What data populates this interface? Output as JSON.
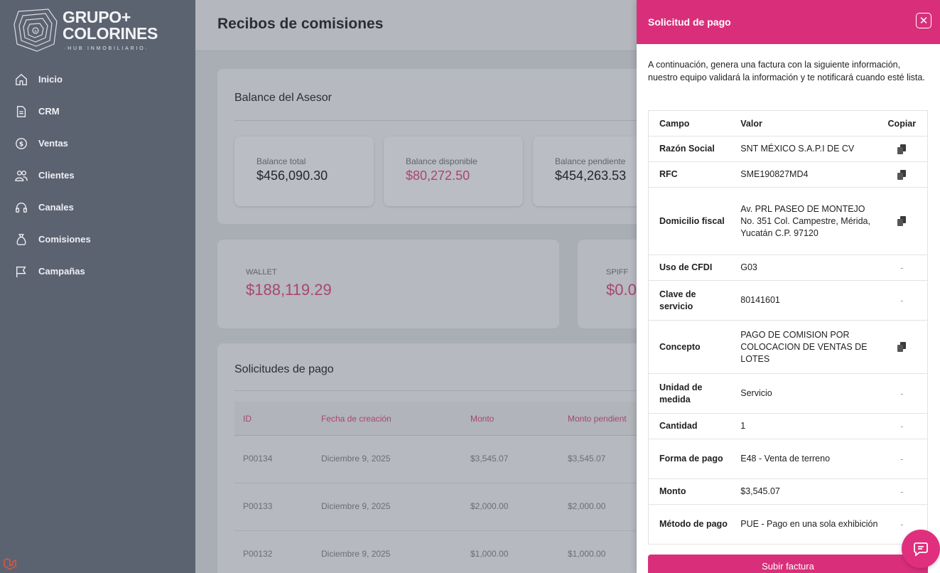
{
  "brand": {
    "line1": "GRUPO+",
    "line2": "COLORINES",
    "tagline": "·HUB INMOBILIARIO·"
  },
  "sidebar": {
    "items": [
      {
        "label": "Inicio",
        "icon": "home-icon"
      },
      {
        "label": "CRM",
        "icon": "document-icon"
      },
      {
        "label": "Ventas",
        "icon": "dollar-circle-icon"
      },
      {
        "label": "Clientes",
        "icon": "users-icon"
      },
      {
        "label": "Canales",
        "icon": "headset-icon"
      },
      {
        "label": "Comisiones",
        "icon": "money-bag-icon"
      },
      {
        "label": "Campañas",
        "icon": "flag-icon"
      }
    ]
  },
  "page": {
    "title": "Recibos de comisiones"
  },
  "balance": {
    "title": "Balance del Asesor",
    "boxes": [
      {
        "label": "Balance total",
        "value": "$456,090.30"
      },
      {
        "label": "Balance disponible",
        "value": "$80,272.50"
      },
      {
        "label": "Balance pendiente",
        "value": "$454,263.53"
      }
    ]
  },
  "wallet": {
    "label": "WALLET",
    "value": "$188,119.29"
  },
  "spiff": {
    "label": "SPIFF",
    "value": "$0.0"
  },
  "requests": {
    "title": "Solicitudes de pago",
    "columns": [
      "ID",
      "Fecha de creación",
      "Monto",
      "Monto pendient"
    ],
    "rows": [
      [
        "P00134",
        "Diciembre 9, 2025",
        "$3,545.07",
        "$3,545.07"
      ],
      [
        "P00133",
        "Diciembre 9, 2025",
        "$2,000.00",
        "$2,000.00"
      ],
      [
        "P00132",
        "Diciembre 9, 2025",
        "$1,000.00",
        "$1,000.00"
      ]
    ]
  },
  "drawer": {
    "title": "Solicitud de pago",
    "intro": "A continuación, genera una factura con la siguiente información, nuestro equipo validará la información y te notificará cuando esté lista.",
    "columns": {
      "field": "Campo",
      "value": "Valor",
      "copy": "Copiar"
    },
    "rows": [
      {
        "field": "Razón Social",
        "value": "SNT MÉXICO S.A.P.I DE CV",
        "copyable": true
      },
      {
        "field": "RFC",
        "value": "SME190827MD4",
        "copyable": true
      },
      {
        "field": "Domicilio fiscal",
        "value": "Av. PRL PASEO DE MONTEJO No. 351 Col. Campestre, Mérida, Yucatán C.P. 97120",
        "copyable": true
      },
      {
        "field": "Uso de CFDI",
        "value": "G03",
        "copyable": false
      },
      {
        "field": "Clave de servicio",
        "value": "80141601",
        "copyable": false
      },
      {
        "field": "Concepto",
        "value": "PAGO DE COMISION POR COLOCACION DE VENTAS DE LOTES",
        "copyable": true
      },
      {
        "field": "Unidad de medida",
        "value": "Servicio",
        "copyable": false
      },
      {
        "field": "Cantidad",
        "value": "1",
        "copyable": false
      },
      {
        "field": "Forma de pago",
        "value": "E48 - Venta de terreno",
        "copyable": false
      },
      {
        "field": "Monto",
        "value": "$3,545.07",
        "copyable": false
      },
      {
        "field": "Método de pago",
        "value": "PUE - Pago en una sola exhibición",
        "copyable": false
      }
    ],
    "no_copy_symbol": "-",
    "upload_label": "Subir factura"
  },
  "colors": {
    "accent": "#d92f7a",
    "sidebar": "#5c6370"
  }
}
